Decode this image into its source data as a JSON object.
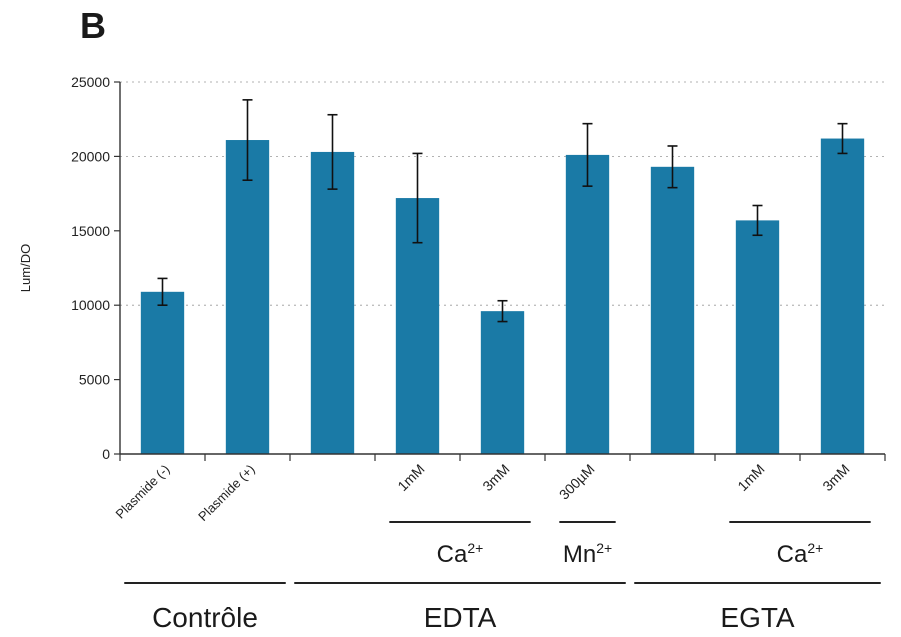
{
  "chart_data": {
    "type": "bar",
    "panel_label": "B",
    "ylabel": "Lum/DO",
    "ylim": [
      0,
      25000
    ],
    "yticks": [
      "0",
      "5000",
      "10000",
      "15000",
      "20000",
      "25000"
    ],
    "grid": "dotted horizontal at 10000, 20000, 25000",
    "bar_color": "#1a7aa6",
    "categories": [
      "Plasmide (-)",
      "Plasmide (+)",
      "",
      "1mM",
      "3mM",
      "300µM",
      "",
      "1mM",
      "3mM"
    ],
    "values": [
      10900,
      21100,
      20300,
      17200,
      9600,
      20100,
      19300,
      15700,
      21200
    ],
    "errors": [
      900,
      2700,
      2500,
      3000,
      700,
      2100,
      1400,
      1000,
      1000
    ],
    "sublabel_offsets": [
      0,
      0,
      0,
      1,
      1,
      1,
      0,
      1,
      1
    ],
    "annotation_groups": [
      {
        "label": "Ca",
        "superscript": "2+",
        "from": 3,
        "to": 4,
        "row": 1
      },
      {
        "label": "Mn",
        "superscript": "2+",
        "from": 5,
        "to": 5,
        "row": 1
      },
      {
        "label": "Ca",
        "superscript": "2+",
        "from": 7,
        "to": 8,
        "row": 1
      },
      {
        "label": "Contrôle",
        "from": 0,
        "to": 1,
        "row": 2
      },
      {
        "label": "EDTA",
        "from": 2,
        "to": 5,
        "row": 2
      },
      {
        "label": "EGTA",
        "from": 6,
        "to": 8,
        "row": 2
      }
    ]
  }
}
